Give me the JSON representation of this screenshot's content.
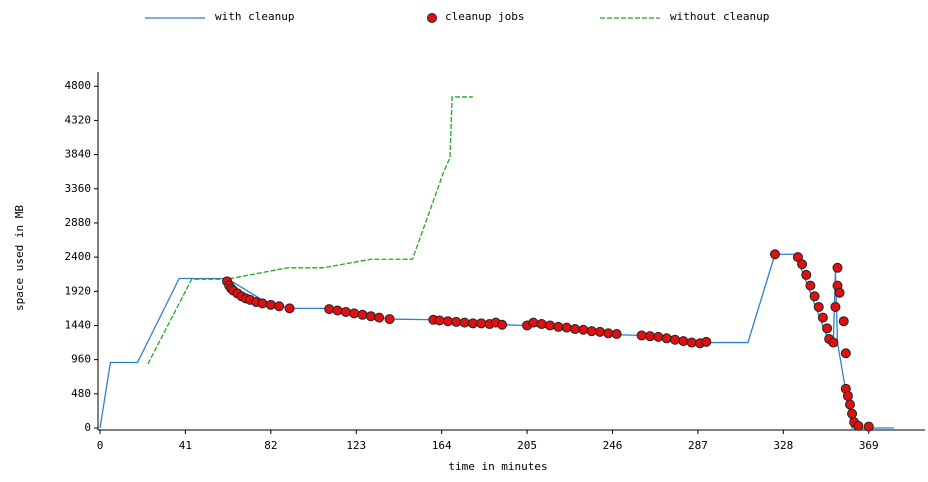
{
  "chart_data": {
    "type": "line",
    "xlabel": "time in minutes",
    "ylabel": "space used in MB",
    "xlim": [
      0,
      396
    ],
    "ylim": [
      0,
      5000
    ],
    "xticks": [
      0,
      41,
      82,
      123,
      164,
      205,
      246,
      287,
      328,
      369
    ],
    "yticks": [
      0,
      480,
      960,
      1440,
      1920,
      2400,
      2880,
      3360,
      3840,
      4320,
      4800
    ],
    "series": [
      {
        "name": "with cleanup",
        "color": "#2f7fd0",
        "mark": "line",
        "style": "solid",
        "x": [
          0,
          5,
          18,
          38,
          61,
          80,
          91,
          110,
          139,
          160,
          193,
          205,
          248,
          260,
          291,
          311,
          324,
          334,
          350,
          352,
          353,
          354,
          361,
          381
        ],
        "values": [
          0,
          920,
          920,
          2100,
          2100,
          1760,
          1680,
          1680,
          1530,
          1520,
          1450,
          1440,
          1310,
          1300,
          1200,
          1200,
          2440,
          2440,
          1200,
          1200,
          2200,
          1200,
          0,
          0
        ]
      },
      {
        "name": "cleanup jobs",
        "color": "#e01010",
        "mark": "points",
        "x": [
          61,
          62,
          63,
          64,
          66,
          68,
          70,
          72,
          75,
          78,
          82,
          86,
          91,
          110,
          114,
          118,
          122,
          126,
          130,
          134,
          139,
          160,
          163,
          167,
          171,
          175,
          179,
          183,
          187,
          190,
          193,
          205,
          208,
          212,
          216,
          220,
          224,
          228,
          232,
          236,
          240,
          244,
          248,
          260,
          264,
          268,
          272,
          276,
          280,
          284,
          288,
          291,
          324,
          335,
          337,
          339,
          341,
          343,
          345,
          347,
          349,
          350,
          352,
          353,
          354,
          354,
          355,
          357,
          358,
          358,
          359,
          360,
          361,
          362,
          364,
          369
        ],
        "values": [
          2060,
          2000,
          1960,
          1930,
          1890,
          1850,
          1820,
          1800,
          1770,
          1750,
          1730,
          1710,
          1680,
          1670,
          1650,
          1630,
          1610,
          1590,
          1570,
          1550,
          1530,
          1520,
          1510,
          1500,
          1490,
          1480,
          1470,
          1470,
          1460,
          1480,
          1450,
          1440,
          1480,
          1460,
          1440,
          1420,
          1410,
          1390,
          1380,
          1360,
          1350,
          1330,
          1320,
          1300,
          1290,
          1280,
          1260,
          1240,
          1220,
          1200,
          1190,
          1210,
          2440,
          2400,
          2300,
          2150,
          2000,
          1850,
          1700,
          1550,
          1400,
          1250,
          1200,
          1700,
          2000,
          2250,
          1900,
          1500,
          1050,
          550,
          450,
          330,
          200,
          80,
          30,
          20
        ]
      },
      {
        "name": "without cleanup",
        "color": "#1faa1f",
        "mark": "line",
        "style": "dashed",
        "x": [
          23,
          44,
          61,
          90,
          107,
          130,
          150,
          165,
          168,
          169,
          179
        ],
        "values": [
          900,
          2090,
          2090,
          2250,
          2250,
          2370,
          2370,
          3600,
          3800,
          4650,
          4650
        ]
      }
    ]
  }
}
